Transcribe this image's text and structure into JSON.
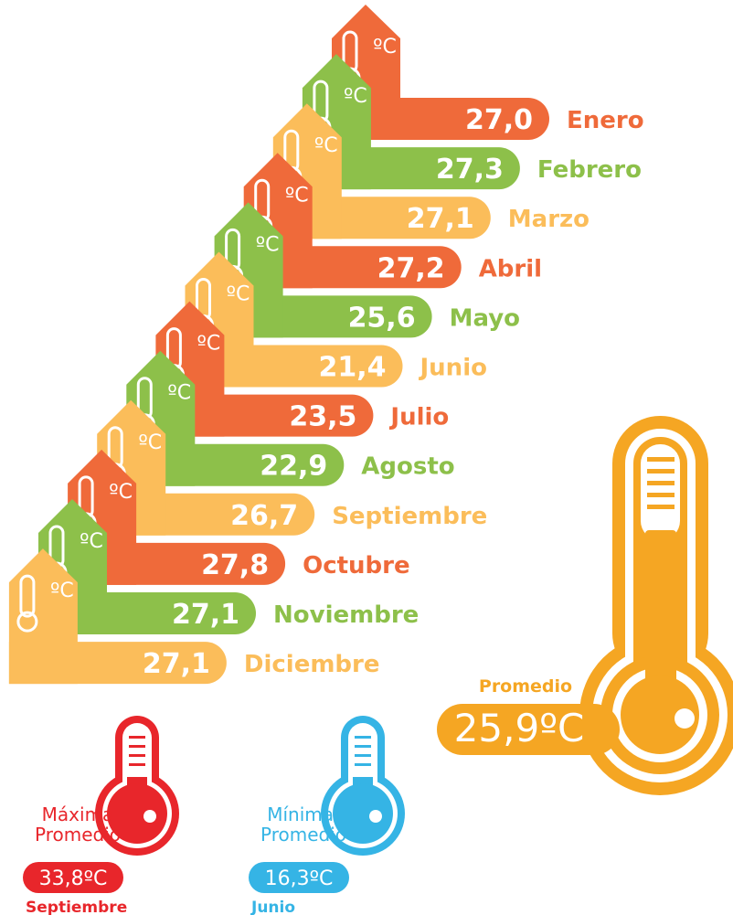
{
  "unit": "ºC",
  "months": [
    {
      "name": "Enero",
      "value": "27,0"
    },
    {
      "name": "Febrero",
      "value": "27,3"
    },
    {
      "name": "Marzo",
      "value": "27,1"
    },
    {
      "name": "Abril",
      "value": "27,2"
    },
    {
      "name": "Mayo",
      "value": "25,6"
    },
    {
      "name": "Junio",
      "value": "21,4"
    },
    {
      "name": "Julio",
      "value": "23,5"
    },
    {
      "name": "Agosto",
      "value": "22,9"
    },
    {
      "name": "Septiembre",
      "value": "26,7"
    },
    {
      "name": "Octubre",
      "value": "27,8"
    },
    {
      "name": "Noviembre",
      "value": "27,1"
    },
    {
      "name": "Diciembre",
      "value": "27,1"
    }
  ],
  "average": {
    "label": "Promedio",
    "value": "25,9ºC"
  },
  "max": {
    "label": [
      "Máxima",
      "Promedio"
    ],
    "value": "33,8ºC",
    "month": "Septiembre"
  },
  "min": {
    "label": [
      "Mínima:",
      "Promedio"
    ],
    "value": "16,3ºC",
    "month": "Junio"
  }
}
